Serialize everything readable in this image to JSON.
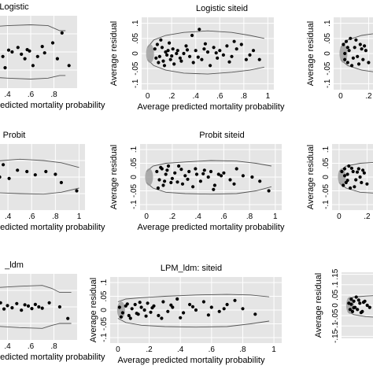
{
  "colors": {
    "panel_bg": "#e5e5e5",
    "grid": "#ffffff",
    "point": "#000000",
    "band": "#555555",
    "marginal": "#9a9a9a"
  },
  "chart_data": [
    {
      "type": "scatter",
      "title": "Logistic",
      "xlabel": "Average predicted mortality probability",
      "ylabel": "",
      "xlim": [
        0.2,
        1.0
      ],
      "ylim": [
        -0.08,
        0.08
      ],
      "xticks": [
        0.4,
        0.6,
        0.8
      ],
      "xtick_labels": [
        ".4",
        ".6",
        ".8"
      ],
      "yticks": [],
      "ytick_labels": [],
      "grid": true,
      "band_x": [
        0.2,
        0.4,
        0.6,
        0.75,
        0.85,
        0.9
      ],
      "band_upper": [
        0.055,
        0.058,
        0.06,
        0.058,
        0.047,
        0.047
      ],
      "band_lower": [
        -0.055,
        -0.058,
        -0.06,
        -0.058,
        -0.052,
        -0.052
      ],
      "x": [
        0.21,
        0.22,
        0.25,
        0.28,
        0.32,
        0.36,
        0.38,
        0.41,
        0.44,
        0.49,
        0.52,
        0.55,
        0.57,
        0.59,
        0.62,
        0.66,
        0.7,
        0.72,
        0.79,
        0.83,
        0.87,
        0.93
      ],
      "y": [
        0.02,
        -0.015,
        0.005,
        0.03,
        0.002,
        -0.01,
        -0.035,
        0.004,
        0.0,
        0.01,
        -0.005,
        -0.015,
        0.005,
        0.002,
        -0.03,
        -0.01,
        0.012,
        -0.002,
        0.02,
        -0.015,
        0.042,
        -0.03
      ]
    },
    {
      "type": "scatter",
      "title": "Logistic siteid",
      "xlabel": "Average predicted mortality probability",
      "ylabel": "Average residual",
      "xlim": [
        -0.05,
        1.05
      ],
      "ylim": [
        -0.12,
        0.12
      ],
      "xticks": [
        0,
        0.2,
        0.4,
        0.6,
        0.8,
        1
      ],
      "xtick_labels": [
        "0",
        ".2",
        ".4",
        ".6",
        ".8",
        "1"
      ],
      "yticks": [
        -0.1,
        -0.05,
        0,
        0.05,
        0.1
      ],
      "ytick_labels": [
        "-.1",
        "-.05",
        "0",
        ".05",
        ".1"
      ],
      "grid": true,
      "band_x": [
        0,
        0.05,
        0.15,
        0.3,
        0.5,
        0.7,
        0.85,
        0.97
      ],
      "band_upper": [
        0.02,
        0.045,
        0.06,
        0.07,
        0.075,
        0.07,
        0.06,
        0.05
      ],
      "band_lower": [
        -0.02,
        -0.04,
        -0.055,
        -0.065,
        -0.068,
        -0.062,
        -0.055,
        -0.045
      ],
      "x": [
        0.08,
        0.1,
        0.12,
        0.13,
        0.15,
        0.16,
        0.18,
        0.19,
        0.21,
        0.22,
        0.25,
        0.27,
        0.3,
        0.32,
        0.35,
        0.37,
        0.38,
        0.4,
        0.43,
        0.45,
        0.47,
        0.5,
        0.52,
        0.55,
        0.58,
        0.6,
        0.63,
        0.66,
        0.7,
        0.74,
        0.78,
        0.82,
        0.88,
        0.93,
        0.09,
        0.11,
        0.14,
        0.17,
        0.2,
        0.24,
        0.28,
        0.33,
        0.42,
        0.48,
        0.57,
        0.68,
        0.72,
        0.85,
        0.06,
        0.07
      ],
      "y": [
        0.03,
        -0.01,
        0.02,
        -0.025,
        0.005,
        -0.005,
        0.035,
        -0.02,
        0.015,
        -0.035,
        0.01,
        -0.015,
        0.0,
        0.025,
        -0.01,
        0.06,
        -0.03,
        0.01,
        0.08,
        -0.02,
        0.015,
        0.005,
        -0.04,
        0.02,
        -0.015,
        0.01,
        -0.005,
        0.025,
        -0.01,
        0.015,
        0.03,
        -0.02,
        0.01,
        -0.02,
        -0.03,
        0.045,
        -0.04,
        0.01,
        -0.008,
        0.0,
        -0.025,
        0.012,
        -0.012,
        0.032,
        0.002,
        -0.028,
        0.04,
        -0.005,
        0.015,
        -0.015
      ]
    },
    {
      "type": "scatter",
      "title": "",
      "xlabel": "",
      "ylabel": "Average residual",
      "xlim": [
        -0.05,
        0.4
      ],
      "ylim": [
        -0.12,
        0.12
      ],
      "xticks": [
        0,
        0.2
      ],
      "xtick_labels": [
        "0",
        ".2"
      ],
      "yticks": [
        -0.1,
        -0.05,
        0,
        0.05,
        0.1
      ],
      "ytick_labels": [
        "-.1",
        "-.05",
        "0",
        ".05",
        ".1"
      ],
      "grid": true,
      "band_x": [
        0,
        0.05,
        0.15,
        0.3,
        0.4
      ],
      "band_upper": [
        0.02,
        0.045,
        0.06,
        0.07,
        0.072
      ],
      "band_lower": [
        -0.02,
        -0.04,
        -0.055,
        -0.065,
        -0.068
      ],
      "x": [
        0.02,
        0.03,
        0.04,
        0.05,
        0.06,
        0.07,
        0.08,
        0.1,
        0.12,
        0.14,
        0.16,
        0.18,
        0.2,
        0.03,
        0.05,
        0.09,
        0.11,
        0.13,
        0.15,
        0.17
      ],
      "y": [
        0.03,
        -0.02,
        0.04,
        -0.03,
        0.01,
        0.05,
        -0.04,
        0.02,
        -0.01,
        0.03,
        -0.02,
        0.01,
        -0.03,
        0.0,
        0.02,
        -0.015,
        0.045,
        -0.035,
        0.015,
        0.025
      ]
    },
    {
      "type": "scatter",
      "title": "Probit",
      "xlabel": "Average predicted mortality probability",
      "ylabel": "",
      "xlim": [
        0.2,
        1.05
      ],
      "ylim": [
        -0.12,
        0.12
      ],
      "xticks": [
        0.4,
        0.6,
        0.8,
        1
      ],
      "xtick_labels": [
        ".4",
        ".6",
        ".8",
        "1"
      ],
      "yticks": [],
      "ytick_labels": [],
      "grid": true,
      "band_x": [
        0.2,
        0.5,
        0.7,
        0.85,
        1.0
      ],
      "band_upper": [
        0.055,
        0.065,
        0.06,
        0.052,
        0.035
      ],
      "band_lower": [
        -0.055,
        -0.06,
        -0.062,
        -0.055,
        -0.04
      ],
      "x": [
        0.21,
        0.24,
        0.26,
        0.3,
        0.33,
        0.36,
        0.41,
        0.48,
        0.56,
        0.63,
        0.72,
        0.8,
        0.85,
        0.98
      ],
      "y": [
        0.03,
        0.015,
        0.025,
        0.045,
        0.0,
        0.045,
        -0.005,
        0.025,
        0.02,
        0.008,
        0.02,
        0.01,
        -0.02,
        -0.05
      ]
    },
    {
      "type": "scatter",
      "title": "Probit siteid",
      "xlabel": "Average predicted mortality probability",
      "ylabel": "Average residual",
      "xlim": [
        -0.05,
        1.05
      ],
      "ylim": [
        -0.12,
        0.12
      ],
      "xticks": [
        0,
        0.2,
        0.4,
        0.6,
        0.8,
        1
      ],
      "xtick_labels": [
        "0",
        ".2",
        ".4",
        ".6",
        ".8",
        "1"
      ],
      "yticks": [
        -0.1,
        -0.05,
        0,
        0.05,
        0.1
      ],
      "ytick_labels": [
        "-.1",
        "-.05",
        "0",
        ".05",
        ".1"
      ],
      "grid": true,
      "band_x": [
        0,
        0.05,
        0.15,
        0.3,
        0.5,
        0.7,
        0.85,
        0.97
      ],
      "band_upper": [
        0.02,
        0.04,
        0.05,
        0.055,
        0.06,
        0.058,
        0.05,
        0.04
      ],
      "band_lower": [
        -0.02,
        -0.04,
        -0.055,
        -0.06,
        -0.062,
        -0.06,
        -0.05,
        -0.035
      ],
      "x": [
        0.08,
        0.1,
        0.12,
        0.13,
        0.15,
        0.17,
        0.19,
        0.22,
        0.25,
        0.28,
        0.3,
        0.33,
        0.36,
        0.39,
        0.42,
        0.45,
        0.48,
        0.5,
        0.53,
        0.56,
        0.6,
        0.65,
        0.7,
        0.75,
        0.82,
        0.88,
        0.95,
        0.09,
        0.11,
        0.14,
        0.16,
        0.2,
        0.24,
        0.27,
        0.32,
        0.38,
        0.44,
        0.52,
        0.58,
        0.68
      ],
      "y": [
        0.02,
        -0.01,
        0.03,
        -0.03,
        0.01,
        0.04,
        -0.02,
        0.015,
        0.04,
        -0.025,
        0.005,
        0.02,
        -0.035,
        0.01,
        -0.015,
        0.025,
        0.0,
        0.02,
        -0.03,
        0.01,
        0.015,
        -0.01,
        0.03,
        0.005,
        0.0,
        -0.015,
        -0.05,
        -0.04,
        0.035,
        -0.015,
        0.025,
        -0.005,
        -0.018,
        0.028,
        -0.008,
        0.03,
        0.012,
        -0.045,
        0.005,
        -0.025
      ]
    },
    {
      "type": "scatter",
      "title": "",
      "xlabel": "",
      "ylabel": "Average residual",
      "xlim": [
        -0.05,
        0.4
      ],
      "ylim": [
        -0.12,
        0.12
      ],
      "xticks": [
        0,
        0.2
      ],
      "xtick_labels": [
        "0",
        ".2"
      ],
      "yticks": [
        -0.1,
        -0.05,
        0,
        0.05,
        0.1
      ],
      "ytick_labels": [
        "-.1",
        "-.05",
        "0",
        ".05",
        ".1"
      ],
      "grid": true,
      "band_x": [
        0,
        0.05,
        0.15,
        0.3,
        0.4
      ],
      "band_upper": [
        0.02,
        0.04,
        0.05,
        0.055,
        0.058
      ],
      "band_lower": [
        -0.02,
        -0.04,
        -0.055,
        -0.06,
        -0.062
      ],
      "x": [
        0.02,
        0.03,
        0.04,
        0.05,
        0.06,
        0.07,
        0.08,
        0.1,
        0.12,
        0.14,
        0.16,
        0.18,
        0.2,
        0.04,
        0.06,
        0.09,
        0.11,
        0.13,
        0.15,
        0.17
      ],
      "y": [
        0.02,
        -0.03,
        0.03,
        -0.02,
        0.01,
        0.04,
        -0.04,
        0.02,
        -0.01,
        0.03,
        -0.02,
        0.015,
        -0.025,
        0.005,
        -0.012,
        0.032,
        -0.035,
        0.018,
        0.0,
        0.025
      ]
    },
    {
      "type": "scatter",
      "title": "_ldm",
      "xlabel": "Average predicted mortality probability",
      "ylabel": "",
      "xlim": [
        0.2,
        1.0
      ],
      "ylim": [
        -0.08,
        0.08
      ],
      "xticks": [
        0.4,
        0.6,
        0.8
      ],
      "xtick_labels": [
        ".4",
        ".6",
        ".8"
      ],
      "yticks": [],
      "ytick_labels": [],
      "grid": true,
      "band_x": [
        0.2,
        0.5,
        0.7,
        0.78,
        0.85,
        0.95
      ],
      "band_upper": [
        0.045,
        0.05,
        0.052,
        0.045,
        0.035,
        0.035
      ],
      "band_lower": [
        -0.045,
        -0.05,
        -0.052,
        -0.045,
        -0.04,
        -0.04
      ],
      "x": [
        0.21,
        0.24,
        0.28,
        0.31,
        0.34,
        0.37,
        0.4,
        0.44,
        0.48,
        0.52,
        0.55,
        0.58,
        0.61,
        0.64,
        0.67,
        0.7,
        0.76,
        0.85,
        0.92
      ],
      "y": [
        0.008,
        -0.01,
        0.005,
        0.002,
        0.01,
        -0.005,
        0.003,
        -0.002,
        0.008,
        -0.008,
        0.005,
        0.002,
        -0.004,
        0.006,
        0.0,
        -0.003,
        0.01,
        0.0,
        -0.028
      ]
    },
    {
      "type": "scatter",
      "title": "LPM_ldm: siteid",
      "xlabel": "Average predicted mortality probability",
      "ylabel": "Average residual",
      "xlim": [
        -0.05,
        1.05
      ],
      "ylim": [
        -0.12,
        0.12
      ],
      "xticks": [
        0,
        0.2,
        0.4,
        0.6,
        0.8,
        1
      ],
      "xtick_labels": [
        "0",
        ".2",
        ".4",
        ".6",
        ".8",
        "1"
      ],
      "yticks": [
        -0.1,
        -0.05,
        0,
        0.05,
        0.1
      ],
      "ytick_labels": [
        "-.1",
        "-.05",
        "0",
        ".05",
        ".1"
      ],
      "grid": true,
      "band_x": [
        0,
        0.05,
        0.15,
        0.3,
        0.5,
        0.7,
        0.85,
        0.97
      ],
      "band_upper": [
        0.03,
        0.04,
        0.045,
        0.05,
        0.055,
        0.057,
        0.055,
        0.048
      ],
      "band_lower": [
        -0.03,
        -0.045,
        -0.055,
        -0.06,
        -0.062,
        -0.06,
        -0.05,
        -0.04
      ],
      "x": [
        0.01,
        0.03,
        0.05,
        0.07,
        0.09,
        0.11,
        0.13,
        0.15,
        0.17,
        0.19,
        0.21,
        0.23,
        0.26,
        0.29,
        0.32,
        0.35,
        0.38,
        0.42,
        0.46,
        0.5,
        0.55,
        0.6,
        0.65,
        0.7,
        0.75,
        0.8,
        0.88,
        0.02,
        0.06,
        0.08,
        0.12,
        0.14,
        0.18,
        0.22,
        0.28,
        0.34,
        0.4,
        0.48,
        0.58,
        0.68
      ],
      "y": [
        0.01,
        -0.01,
        0.015,
        -0.02,
        0.005,
        0.02,
        -0.015,
        0.01,
        0.0,
        0.025,
        -0.008,
        0.015,
        -0.02,
        0.03,
        -0.005,
        0.01,
        0.04,
        -0.01,
        0.02,
        0.0,
        0.03,
        0.01,
        -0.005,
        0.02,
        0.035,
        0.005,
        -0.015,
        -0.025,
        0.022,
        -0.03,
        -0.012,
        0.028,
        -0.022,
        0.008,
        -0.03,
        0.018,
        -0.028,
        0.012,
        -0.018,
        0.005
      ]
    },
    {
      "type": "scatter",
      "title": "",
      "xlabel": "",
      "ylabel": "Average residual",
      "xlim": [
        -0.05,
        0.4
      ],
      "ylim": [
        -0.16,
        0.16
      ],
      "xticks": [],
      "xtick_labels": [],
      "yticks": [
        -0.15,
        -0.1,
        -0.05,
        0,
        0.05,
        0.1,
        0.15
      ],
      "ytick_labels": [
        "-.15",
        "-.1",
        "-.05",
        "0",
        ".05",
        ".1",
        ".15"
      ],
      "grid": true,
      "band_x": [
        0,
        0.05,
        0.15,
        0.3,
        0.4
      ],
      "band_upper": [
        0.03,
        0.04,
        0.045,
        0.05,
        0.052
      ],
      "band_lower": [
        -0.03,
        -0.045,
        -0.055,
        -0.06,
        -0.062
      ],
      "x": [
        0.01,
        0.02,
        0.03,
        0.04,
        0.05,
        0.06,
        0.07,
        0.08,
        0.1,
        0.12,
        0.14,
        0.16,
        0.18,
        0.03,
        0.05,
        0.09,
        0.11,
        0.13
      ],
      "y": [
        0.01,
        -0.02,
        0.03,
        -0.03,
        0.02,
        -0.01,
        0.04,
        -0.02,
        0.01,
        -0.03,
        0.02,
        0.0,
        -0.01,
        0.005,
        -0.012,
        0.025,
        -0.035,
        0.015
      ]
    }
  ]
}
